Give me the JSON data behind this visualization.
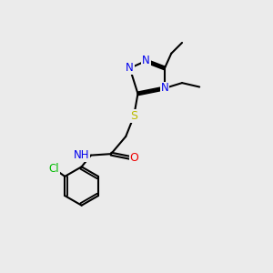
{
  "background_color": "#ebebeb",
  "bond_color": "#000000",
  "nitrogen_color": "#0000ee",
  "oxygen_color": "#ee0000",
  "sulfur_color": "#bbbb00",
  "chlorine_color": "#00bb00",
  "line_width": 1.5,
  "fig_width": 3.0,
  "fig_height": 3.0,
  "dpi": 100,
  "xlim": [
    0,
    10
  ],
  "ylim": [
    0,
    10
  ]
}
